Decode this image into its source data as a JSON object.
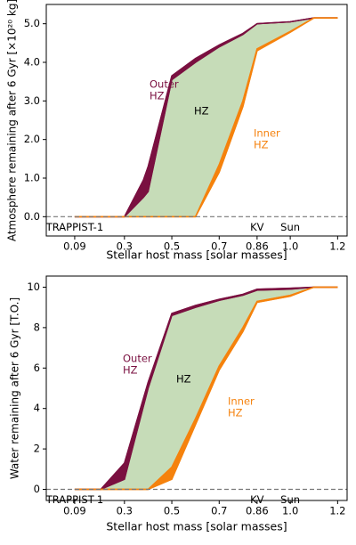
{
  "charts": [
    {
      "chart_data": {
        "type": "area",
        "ylabel": "Atmosphere remaining after 6 Gyr [×10²⁰ kg]",
        "xlabel": "Stellar host mass [solar masses]",
        "x": [
          0.09,
          0.3,
          0.38,
          0.4,
          0.5,
          0.6,
          0.7,
          0.8,
          0.86,
          1.0,
          1.1,
          1.2
        ],
        "xlim": [
          -0.03,
          1.24
        ],
        "xticks": [
          0.09,
          0.3,
          0.5,
          0.7,
          0.86,
          {
            "value": 1,
            "label": "1.0"
          },
          1.2
        ],
        "ylim": [
          -0.5,
          5.5
        ],
        "yticks": [
          {
            "value": 0,
            "label": "0.0"
          },
          {
            "value": 1,
            "label": "1.0"
          },
          {
            "value": 2,
            "label": "2.0"
          },
          {
            "value": 3,
            "label": "3.0"
          },
          {
            "value": 4,
            "label": "4.0"
          },
          {
            "value": 5,
            "label": "5.0"
          }
        ],
        "hline": 0,
        "bands": [
          {
            "label": [
              "HZ"
            ],
            "color": "#c6dcb8",
            "lower": [
              0,
              0,
              0,
              0,
              0,
              0,
              1.35,
              3.0,
              4.35,
              4.8,
              5.15,
              5.15
            ],
            "upper": [
              0,
              0,
              0.5,
              0.65,
              3.55,
              4.0,
              4.4,
              4.72,
              5.0,
              5.05,
              5.15,
              5.15
            ]
          },
          {
            "label": [
              "Outer",
              "HZ"
            ],
            "color": "#7a1040",
            "lower": [
              0,
              0,
              0.5,
              0.65,
              3.55,
              4.0,
              4.4,
              4.72,
              5.0,
              5.05,
              5.15,
              5.15
            ],
            "upper": [
              0,
              0,
              0.95,
              1.3,
              3.65,
              4.1,
              4.45,
              4.75,
              5.0,
              5.05,
              5.15,
              5.15
            ]
          },
          {
            "label": [
              "Inner",
              "HZ"
            ],
            "color": "#f5820d",
            "lower": [
              0,
              0,
              0,
              0,
              0,
              0,
              1.15,
              2.85,
              4.3,
              4.78,
              5.15,
              5.15
            ],
            "upper": [
              0,
              0,
              0,
              0,
              0,
              0,
              1.35,
              3.0,
              4.35,
              4.8,
              5.15,
              5.15
            ]
          }
        ],
        "annotations": [
          {
            "text": "TRAPPIST-1",
            "x": 0.09
          },
          {
            "text": "KV",
            "x": 0.86
          },
          {
            "text": "Sun",
            "x": 1.0
          }
        ]
      }
    },
    {
      "chart_data": {
        "type": "area",
        "ylabel": "Water remaining after 6 Gyr [T.O.]",
        "xlabel": "Stellar host mass [solar masses]",
        "x": [
          0.09,
          0.2,
          0.3,
          0.4,
          0.5,
          0.6,
          0.7,
          0.8,
          0.86,
          1.0,
          1.1,
          1.2
        ],
        "xlim": [
          -0.03,
          1.24
        ],
        "xticks": [
          0.09,
          0.3,
          0.5,
          0.7,
          0.86,
          {
            "value": 1,
            "label": "1.0"
          },
          1.2
        ],
        "ylim": [
          -0.55,
          10.55
        ],
        "yticks": [
          0,
          2,
          4,
          6,
          8,
          10
        ],
        "hline": 0,
        "bands": [
          {
            "label": [
              "HZ"
            ],
            "color": "#c6dcb8",
            "lower": [
              0,
              0,
              0,
              0,
              1.1,
              3.5,
              6.1,
              8.0,
              9.3,
              9.6,
              10,
              10
            ],
            "upper": [
              0,
              0,
              0.5,
              5.0,
              8.6,
              9.0,
              9.35,
              9.6,
              9.85,
              9.9,
              10,
              10
            ]
          },
          {
            "label": [
              "Outer",
              "HZ"
            ],
            "color": "#7a1040",
            "lower": [
              0,
              0,
              0.5,
              5.0,
              8.6,
              9.0,
              9.35,
              9.6,
              9.85,
              9.9,
              10,
              10
            ],
            "upper": [
              0,
              0,
              1.3,
              5.3,
              8.7,
              9.1,
              9.4,
              9.65,
              9.9,
              9.95,
              10,
              10
            ]
          },
          {
            "label": [
              "Inner",
              "HZ"
            ],
            "color": "#f5820d",
            "lower": [
              0,
              0,
              0,
              0,
              0.5,
              3.2,
              5.9,
              7.8,
              9.25,
              9.55,
              10,
              10
            ],
            "upper": [
              0,
              0,
              0,
              0,
              1.1,
              3.5,
              6.1,
              8.0,
              9.3,
              9.6,
              10,
              10
            ]
          }
        ],
        "annotations": [
          {
            "text": "TRAPPIST-1",
            "x": 0.09
          },
          {
            "text": "KV",
            "x": 0.86
          },
          {
            "text": "Sun",
            "x": 1.0
          }
        ]
      }
    }
  ]
}
